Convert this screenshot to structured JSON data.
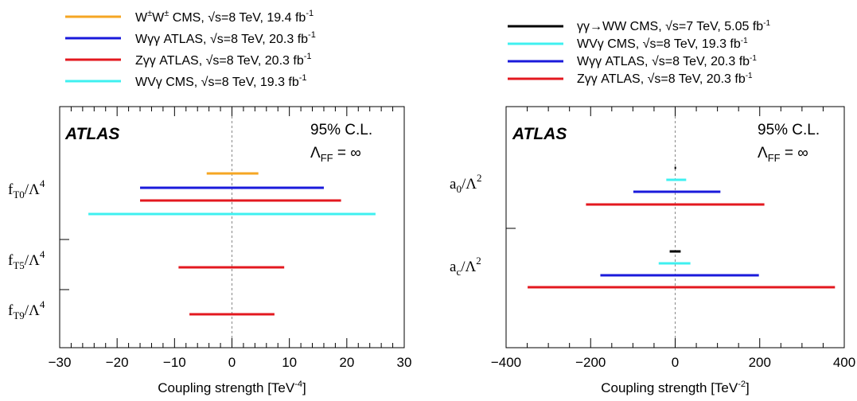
{
  "chart_data": [
    {
      "type": "interval",
      "colors": {
        "W±W± CMS": "#f5a623",
        "Wγγ ATLAS": "#1a1adb",
        "Zγγ ATLAS": "#e3181f",
        "WVγ CMS": "#3ff0f0"
      },
      "legend": [
        {
          "label": "W±W± CMS, √s=8 TeV, 19.4 fb⁻¹",
          "color": "#f5a623"
        },
        {
          "label": "Wγγ ATLAS, √s=8 TeV, 20.3 fb⁻¹",
          "color": "#1a1adb"
        },
        {
          "label": "Zγγ ATLAS, √s=8 TeV, 20.3 fb⁻¹",
          "color": "#e3181f"
        },
        {
          "label": "WVγ CMS, √s=8 TeV, 19.3 fb⁻¹",
          "color": "#3ff0f0"
        }
      ],
      "experiment_label": "ATLAS",
      "cl_text": "95% C.L.",
      "lambda_text": "ΛFF = ∞",
      "xlabel": "Coupling strength [TeV⁻⁴]",
      "xlim": [
        -30,
        30
      ],
      "xticks": [
        -30,
        -20,
        -10,
        0,
        10,
        20,
        30
      ],
      "groups": [
        {
          "label": "fT0/Λ4",
          "intervals": [
            {
              "color": "#f5a623",
              "low": -4.4,
              "high": 4.6
            },
            {
              "color": "#1a1adb",
              "low": -16,
              "high": 16
            },
            {
              "color": "#e3181f",
              "low": -16,
              "high": 19
            },
            {
              "color": "#3ff0f0",
              "low": -25,
              "high": 25
            }
          ]
        },
        {
          "label": "fT5/Λ4",
          "intervals": [
            {
              "color": "#e3181f",
              "low": -9.3,
              "high": 9.1
            }
          ]
        },
        {
          "label": "fT9/Λ4",
          "intervals": [
            {
              "color": "#e3181f",
              "low": -7.4,
              "high": 7.4
            }
          ]
        }
      ]
    },
    {
      "type": "interval",
      "legend": [
        {
          "label": "γγ→WW CMS, √s=7 TeV, 5.05 fb⁻¹",
          "color": "#000000"
        },
        {
          "label": "WVγ CMS, √s=8 TeV, 19.3 fb⁻¹",
          "color": "#3ff0f0"
        },
        {
          "label": "Wγγ ATLAS, √s=8 TeV, 20.3 fb⁻¹",
          "color": "#1a1adb"
        },
        {
          "label": "Zγγ ATLAS, √s=8 TeV, 20.3 fb⁻¹",
          "color": "#e3181f"
        }
      ],
      "experiment_label": "ATLAS",
      "cl_text": "95% C.L.",
      "lambda_text": "ΛFF = ∞",
      "xlabel": "Coupling strength [TeV⁻²]",
      "xlim": [
        -400,
        400
      ],
      "xticks": [
        -400,
        -200,
        0,
        200,
        400
      ],
      "groups": [
        {
          "label": "a0/Λ2",
          "intervals": [
            {
              "color": "#000000",
              "low": -1.5,
              "high": 1.5
            },
            {
              "color": "#3ff0f0",
              "low": -21,
              "high": 26
            },
            {
              "color": "#1a1adb",
              "low": -99,
              "high": 107
            },
            {
              "color": "#e3181f",
              "low": -211,
              "high": 211
            }
          ]
        },
        {
          "label": "ac/Λ2",
          "intervals": [
            {
              "color": "#000000",
              "low": -13,
              "high": 13
            },
            {
              "color": "#3ff0f0",
              "low": -39,
              "high": 36
            },
            {
              "color": "#1a1adb",
              "low": -177,
              "high": 198
            },
            {
              "color": "#e3181f",
              "low": -349,
              "high": 378
            }
          ]
        }
      ]
    }
  ]
}
